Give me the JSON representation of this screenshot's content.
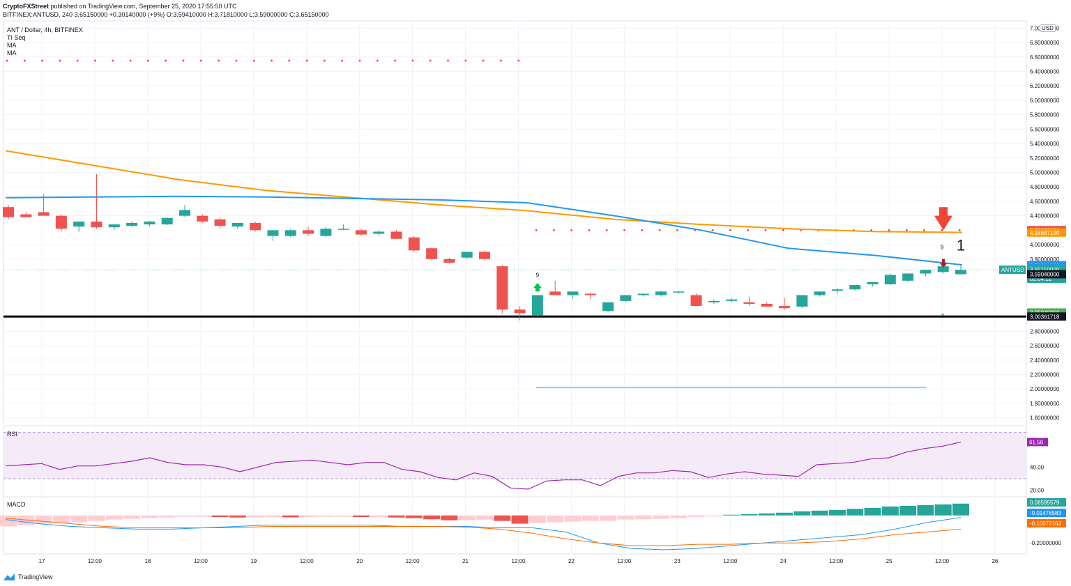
{
  "header": {
    "publisher": "CryptoFXStreet",
    "line1_rest": " published on TradingView.com, September 25, 2020 17:55:50 UTC",
    "symbol": "BITFINEX:ANTUSD, 240",
    "last": "3.65150000",
    "change": "+0.30140000 (+9%)",
    "o_label": "O:",
    "o": "3.59410000",
    "h_label": "H:",
    "h": "3.71810000",
    "l_label": "L:",
    "l": "3.59000000",
    "c_label": "C:",
    "c": "3.65150000"
  },
  "legend": {
    "title": "ANT / Dollar, 4h, BITFINEX",
    "items": [
      "TI Seq",
      "MA",
      "MA"
    ]
  },
  "currency": "USD",
  "footer": {
    "brand": "TradingView"
  },
  "colors": {
    "up": "#26a69a",
    "down": "#ef5350",
    "ma_slow": "#ff9800",
    "ma_fast": "#2196f3",
    "rsi": "#9c27b0",
    "macd_line": "#2196f3",
    "signal_line": "#ff6d00",
    "dots": "#f44336"
  },
  "chart_data": [
    {
      "type": "candlestick",
      "title": "ANT / Dollar, 4h, BITFINEX",
      "ylim": [
        1.5,
        7.1
      ],
      "yticks": [
        "7.00000000",
        "6.80000000",
        "6.60000000",
        "6.40000000",
        "6.20000000",
        "6.00000000",
        "5.80000000",
        "5.60000000",
        "5.40000000",
        "5.20000000",
        "5.00000000",
        "4.80000000",
        "4.60000000",
        "4.40000000",
        "4.00000000",
        "3.80000000",
        "2.80000000",
        "2.60000000",
        "2.40000000",
        "2.20000000",
        "2.00000000",
        "1.80000000",
        "1.60000000"
      ],
      "xticks": [
        "17",
        "12:00",
        "18",
        "12:00",
        "19",
        "12:00",
        "20",
        "12:00",
        "21",
        "12:00",
        "22",
        "12:00",
        "23",
        "12:00",
        "24",
        "12:00",
        "25",
        "12:00",
        "26"
      ],
      "candles": [
        [
          4.52,
          4.55,
          4.35,
          4.38
        ],
        [
          4.42,
          4.45,
          4.38,
          4.38
        ],
        [
          4.45,
          4.7,
          4.42,
          4.4
        ],
        [
          4.4,
          4.42,
          4.18,
          4.22
        ],
        [
          4.25,
          4.32,
          4.18,
          4.32
        ],
        [
          4.32,
          4.98,
          4.22,
          4.24
        ],
        [
          4.24,
          4.28,
          4.2,
          4.28
        ],
        [
          4.26,
          4.32,
          4.24,
          4.3
        ],
        [
          4.28,
          4.33,
          4.25,
          4.32
        ],
        [
          4.28,
          4.38,
          4.27,
          4.37
        ],
        [
          4.4,
          4.55,
          4.38,
          4.48
        ],
        [
          4.4,
          4.42,
          4.3,
          4.32
        ],
        [
          4.35,
          4.38,
          4.22,
          4.26
        ],
        [
          4.25,
          4.3,
          4.22,
          4.3
        ],
        [
          4.3,
          4.32,
          4.18,
          4.2
        ],
        [
          4.12,
          4.15,
          4.05,
          4.2
        ],
        [
          4.12,
          4.22,
          4.1,
          4.2
        ],
        [
          4.2,
          4.25,
          4.12,
          4.15
        ],
        [
          4.12,
          4.25,
          4.1,
          4.22
        ],
        [
          4.22,
          4.28,
          4.2,
          4.22
        ],
        [
          4.2,
          4.22,
          4.12,
          4.14
        ],
        [
          4.15,
          4.2,
          4.12,
          4.18
        ],
        [
          4.18,
          4.2,
          4.08,
          4.08
        ],
        [
          4.1,
          4.12,
          3.9,
          3.92
        ],
        [
          3.95,
          3.96,
          3.78,
          3.8
        ],
        [
          3.8,
          3.82,
          3.74,
          3.75
        ],
        [
          3.82,
          3.9,
          3.8,
          3.9
        ],
        [
          3.9,
          3.92,
          3.78,
          3.8
        ],
        [
          3.7,
          3.72,
          3.05,
          3.1
        ],
        [
          3.1,
          3.15,
          2.95,
          3.05
        ],
        [
          3.02,
          3.3,
          3.0,
          3.3
        ],
        [
          3.35,
          3.5,
          3.3,
          3.3
        ],
        [
          3.3,
          3.35,
          3.25,
          3.35
        ],
        [
          3.32,
          3.33,
          3.25,
          3.3
        ],
        [
          3.08,
          3.2,
          3.06,
          3.2
        ],
        [
          3.22,
          3.3,
          3.2,
          3.3
        ],
        [
          3.3,
          3.32,
          3.28,
          3.32
        ],
        [
          3.3,
          3.36,
          3.28,
          3.35
        ],
        [
          3.35,
          3.36,
          3.32,
          3.35
        ],
        [
          3.3,
          3.32,
          3.15,
          3.15
        ],
        [
          3.2,
          3.24,
          3.18,
          3.22
        ],
        [
          3.22,
          3.26,
          3.2,
          3.24
        ],
        [
          3.2,
          3.28,
          3.15,
          3.18
        ],
        [
          3.18,
          3.2,
          3.14,
          3.14
        ],
        [
          3.15,
          3.26,
          3.1,
          3.12
        ],
        [
          3.14,
          3.3,
          3.12,
          3.3
        ],
        [
          3.3,
          3.35,
          3.28,
          3.35
        ],
        [
          3.36,
          3.4,
          3.32,
          3.38
        ],
        [
          3.38,
          3.44,
          3.36,
          3.44
        ],
        [
          3.45,
          3.48,
          3.42,
          3.48
        ],
        [
          3.45,
          3.6,
          3.44,
          3.58
        ],
        [
          3.5,
          3.6,
          3.48,
          3.6
        ],
        [
          3.6,
          3.65,
          3.56,
          3.65
        ],
        [
          3.62,
          3.75,
          3.6,
          3.7
        ],
        [
          3.59,
          3.72,
          3.59,
          3.65
        ]
      ],
      "moving_averages": {
        "ma_slow": [
          5.3,
          5.1,
          4.9,
          4.75,
          4.65,
          4.55,
          4.47,
          4.35,
          4.28,
          4.22,
          4.18,
          4.17
        ],
        "ma_fast": [
          4.65,
          4.66,
          4.67,
          4.66,
          4.64,
          4.62,
          4.58,
          4.4,
          4.2,
          3.95,
          3.85,
          3.72
        ]
      },
      "support_level": 3.0036,
      "price_tags": [
        {
          "value": "4.20150000",
          "color": "#ef5350"
        },
        {
          "value": "4.16687100",
          "color": "#ff9800"
        },
        {
          "value": "3.71310000",
          "color": "#2196f3"
        },
        {
          "value": "3.67887800",
          "color": "#2196f3"
        },
        {
          "value": "3.65150000",
          "color": "#26a69a"
        },
        {
          "value": "02:04:12",
          "color": "#26a69a"
        },
        {
          "value": "3.59040000",
          "color": "#131722"
        },
        {
          "value": "3.05940000",
          "color": "#4caf50"
        },
        {
          "value": "3.00361718",
          "color": "#131722"
        }
      ],
      "symbol_tag": "ANTUSD",
      "annotations": [
        "9",
        "9",
        "1"
      ]
    },
    {
      "type": "line",
      "title": "RSI",
      "ylim": [
        15,
        75
      ],
      "yticks": [
        "40.00",
        "20.00"
      ],
      "values": [
        41,
        42,
        43,
        38,
        41,
        41,
        43,
        45,
        48,
        44,
        42,
        42,
        40,
        36,
        40,
        44,
        45,
        46,
        44,
        42,
        44,
        44,
        38,
        36,
        31,
        29,
        35,
        32,
        22,
        21,
        28,
        29,
        29,
        24,
        32,
        35,
        35,
        37,
        36,
        31,
        34,
        36,
        34,
        33,
        32,
        42,
        43,
        44,
        47,
        48,
        53,
        56,
        58,
        61.56
      ],
      "last_value": "61.56",
      "band": [
        30,
        70
      ]
    },
    {
      "type": "bar",
      "title": "MACD",
      "ylim": [
        -0.26,
        0.1
      ],
      "yticks": [
        "-0.20000000"
      ],
      "histogram": [
        -0.08,
        -0.07,
        -0.06,
        -0.055,
        -0.05,
        -0.04,
        -0.03,
        -0.025,
        -0.02,
        -0.015,
        -0.01,
        -0.01,
        -0.012,
        -0.015,
        -0.014,
        -0.013,
        -0.014,
        -0.012,
        -0.01,
        -0.01,
        -0.012,
        -0.012,
        -0.015,
        -0.02,
        -0.028,
        -0.035,
        -0.035,
        -0.03,
        -0.04,
        -0.06,
        -0.055,
        -0.05,
        -0.045,
        -0.04,
        -0.04,
        -0.03,
        -0.028,
        -0.025,
        -0.02,
        -0.012,
        -0.008,
        0.005,
        0.01,
        0.015,
        0.02,
        0.03,
        0.035,
        0.04,
        0.048,
        0.055,
        0.065,
        0.07,
        0.075,
        0.08,
        0.086
      ],
      "macd": [
        -0.03,
        -0.06,
        -0.08,
        -0.09,
        -0.1,
        -0.1,
        -0.09,
        -0.08,
        -0.07,
        -0.07,
        -0.07,
        -0.07,
        -0.08,
        -0.08,
        -0.08,
        -0.09,
        -0.09,
        -0.12,
        -0.2,
        -0.24,
        -0.25,
        -0.24,
        -0.22,
        -0.2,
        -0.18,
        -0.16,
        -0.14,
        -0.1,
        -0.05,
        -0.015
      ],
      "signal": [
        -0.02,
        -0.04,
        -0.06,
        -0.08,
        -0.09,
        -0.09,
        -0.09,
        -0.09,
        -0.08,
        -0.08,
        -0.08,
        -0.08,
        -0.08,
        -0.08,
        -0.085,
        -0.1,
        -0.13,
        -0.17,
        -0.2,
        -0.22,
        -0.22,
        -0.21,
        -0.21,
        -0.2,
        -0.2,
        -0.19,
        -0.17,
        -0.14,
        -0.12,
        -0.1
      ],
      "tags": [
        {
          "value": "0.08595579",
          "color": "#26a69a"
        },
        {
          "value": "-0.01476583",
          "color": "#2196f3"
        },
        {
          "value": "-0.10072162",
          "color": "#ff6d00"
        }
      ]
    }
  ]
}
